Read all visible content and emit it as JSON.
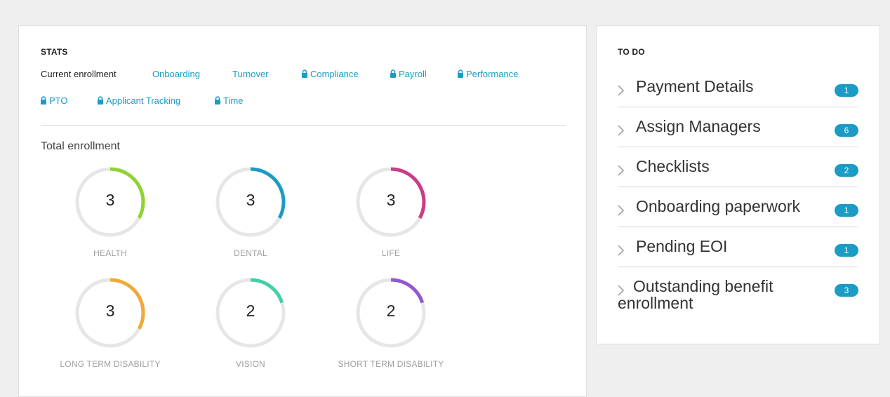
{
  "stats": {
    "title": "STATS",
    "tabs": [
      {
        "label": "Current enrollment",
        "locked": false,
        "active": true
      },
      {
        "label": "Onboarding",
        "locked": false,
        "active": false
      },
      {
        "label": "Turnover",
        "locked": false,
        "active": false
      },
      {
        "label": "Compliance",
        "locked": true,
        "active": false
      },
      {
        "label": "Payroll",
        "locked": true,
        "active": false
      },
      {
        "label": "Performance",
        "locked": true,
        "active": false
      },
      {
        "label": "PTO",
        "locked": true,
        "active": false
      },
      {
        "label": "Applicant Tracking",
        "locked": true,
        "active": false
      },
      {
        "label": "Time",
        "locked": true,
        "active": false
      }
    ],
    "section_label": "Total enrollment",
    "metrics": [
      {
        "value": "3",
        "label": "HEALTH",
        "color": "#8fd233",
        "fraction": 0.33
      },
      {
        "value": "3",
        "label": "DENTAL",
        "color": "#1a9cc4",
        "fraction": 0.33
      },
      {
        "value": "3",
        "label": "LIFE",
        "color": "#cc3b86",
        "fraction": 0.33
      },
      {
        "value": "3",
        "label": "LONG TERM DISABILITY",
        "color": "#f0a93a",
        "fraction": 0.33
      },
      {
        "value": "2",
        "label": "VISION",
        "color": "#41cfa8",
        "fraction": 0.2
      },
      {
        "value": "2",
        "label": "SHORT TERM DISABILITY",
        "color": "#9457cf",
        "fraction": 0.2
      }
    ]
  },
  "todo": {
    "title": "TO DO",
    "items": [
      {
        "label": "Payment Details",
        "count": "1"
      },
      {
        "label": "Assign Managers",
        "count": "6"
      },
      {
        "label": "Checklists",
        "count": "2"
      },
      {
        "label": "Onboarding paperwork",
        "count": "1"
      },
      {
        "label": "Pending EOI",
        "count": "1"
      },
      {
        "label": "Outstanding benefit enrollment",
        "count": "3"
      }
    ]
  },
  "colors": {
    "accent": "#1a9cc4",
    "ring_track": "#e6e6e6"
  }
}
